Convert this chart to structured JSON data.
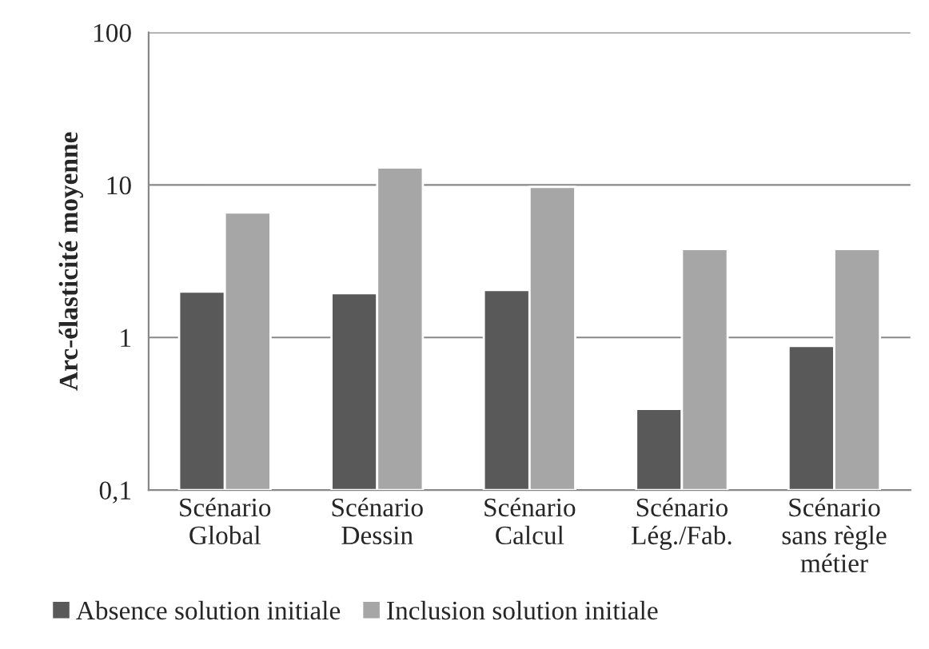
{
  "chart_data": {
    "type": "bar",
    "ylabel": "Arc-élasticité moyenne",
    "categories": [
      "Scénario\nGlobal",
      "Scénario\nDessin",
      "Scénario\nCalcul",
      "Scénario\nLég./Fab.",
      "Scénario\nsans règle\nmétier"
    ],
    "series": [
      {
        "name": "Absence solution initiale",
        "color": "#595959",
        "values": [
          2.0,
          1.95,
          2.05,
          0.34,
          0.88
        ]
      },
      {
        "name": "Inclusion solution initiale",
        "color": "#a6a6a6",
        "values": [
          6.6,
          13,
          9.7,
          3.8,
          3.8
        ]
      }
    ],
    "log": true,
    "ylim": [
      0.1,
      100
    ],
    "yticks": [
      {
        "value": 0.1,
        "label": "0,1"
      },
      1,
      10,
      100
    ],
    "grid": "y",
    "legend": "bottom"
  }
}
